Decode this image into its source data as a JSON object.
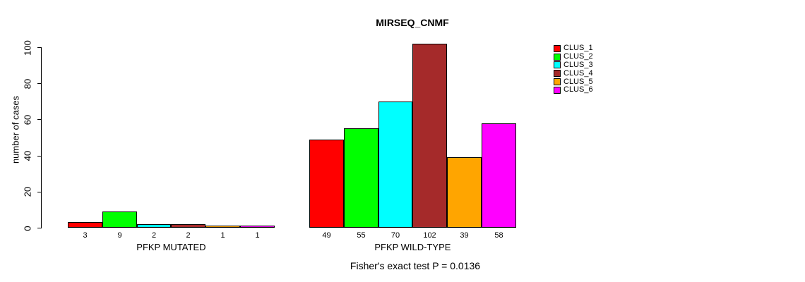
{
  "chart_data": {
    "type": "bar",
    "title": "MIRSEQ_CNMF",
    "ylabel": "number of cases",
    "xlabel": "",
    "ylim": [
      0,
      100
    ],
    "yticks": [
      0,
      20,
      40,
      60,
      80,
      100
    ],
    "grid": false,
    "legend_position": "right",
    "background": "#FFFFFF",
    "bar_border_color": "#000000",
    "series_names": [
      "CLUS_1",
      "CLUS_2",
      "CLUS_3",
      "CLUS_4",
      "CLUS_5",
      "CLUS_6"
    ],
    "colors": [
      "#FF0000",
      "#00FF00",
      "#00FFFF",
      "#A52A2A",
      "#FFA500",
      "#FF00FF"
    ],
    "groups": [
      {
        "label": "PFKP MUTATED",
        "values": [
          3,
          9,
          2,
          2,
          1,
          1
        ]
      },
      {
        "label": "PFKP WILD-TYPE",
        "values": [
          49,
          55,
          70,
          102,
          39,
          58
        ]
      }
    ],
    "bar_value_labels_shown": true,
    "annotation": "Fisher's exact test P = 0.0136"
  }
}
